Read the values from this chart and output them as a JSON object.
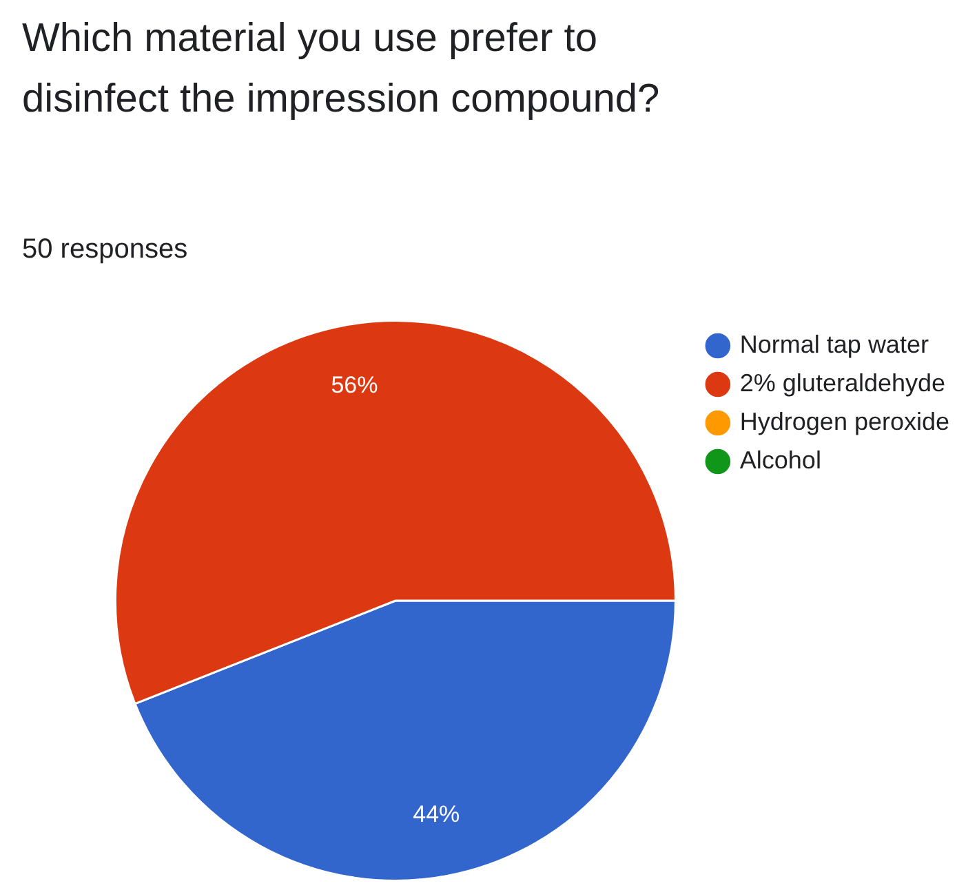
{
  "chart_data": {
    "type": "pie",
    "title": "Which material you use prefer to disinfect the impression compound?",
    "subtitle": "50 responses",
    "categories": [
      "Normal tap water",
      "2% gluteraldehyde",
      "Hydrogen peroxide",
      "Alcohol"
    ],
    "values": [
      44,
      56,
      0,
      0
    ],
    "value_labels": [
      "44%",
      "56%",
      null,
      null
    ],
    "colors": [
      "#3366cc",
      "#dc3912",
      "#ff9900",
      "#109618"
    ],
    "legend": "top right"
  }
}
